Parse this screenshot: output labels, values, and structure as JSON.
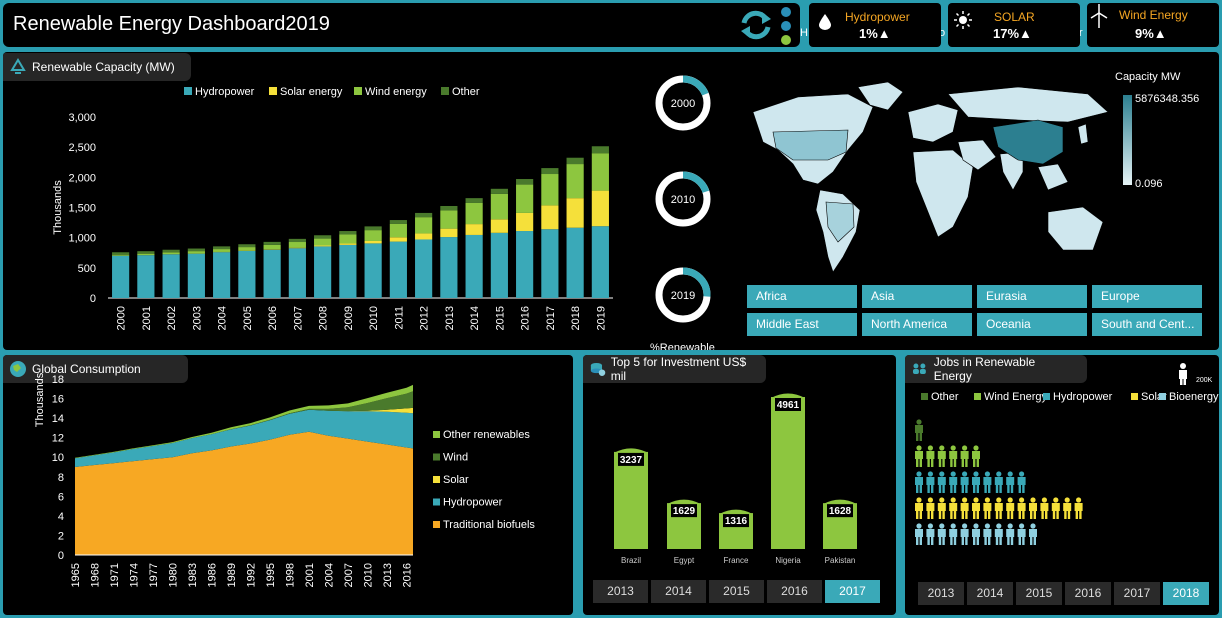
{
  "header": {
    "title": "Renewable Energy Dashboard2019",
    "refresh_icon": "refresh-icon",
    "nav_dots": [
      "#2a8fb8",
      "#2a8fb8",
      "#8dc63f"
    ]
  },
  "kpis": [
    {
      "label": "Hydropower",
      "value": "1%",
      "arrow": "▲",
      "icon": "water-drop-icon"
    },
    {
      "label": "SOLAR",
      "value": "17%",
      "arrow": "▲",
      "icon": "sun-icon"
    },
    {
      "label": "Wind Energy",
      "value": "9%",
      "arrow": "▲",
      "icon": "wind-turbine-icon"
    }
  ],
  "behind_kpi_text": [
    "H",
    "o",
    "r"
  ],
  "colors": {
    "hydro": "#3aa9b8",
    "solar": "#f5e03a",
    "wind": "#8dc63f",
    "other": "#4a7a2c",
    "biofuel": "#f7a823",
    "bio": "#8fd0e0",
    "panel": "#000000",
    "accent": "#2a9db0"
  },
  "capacity": {
    "title": "Renewable Capacity (MW)",
    "ylabel": "Thousands",
    "legend": [
      "Hydropower",
      "Solar energy",
      "Wind energy",
      "Other"
    ],
    "yticks": [
      "3,000",
      "2,500",
      "2,000",
      "1,500",
      "1,000",
      "500",
      "0"
    ]
  },
  "donuts": [
    {
      "label": "2000",
      "pct": 0.19
    },
    {
      "label": "2010",
      "pct": 0.2
    },
    {
      "label": "2019",
      "pct": 0.26
    }
  ],
  "renewable_label": "%Renewable",
  "map": {
    "legend_title": "Capacity MW",
    "max": "5876348.356",
    "min": "0.096"
  },
  "regions": [
    "Africa",
    "Asia",
    "Eurasia",
    "Europe",
    "Middle East",
    "North America",
    "Oceania",
    "South and Cent..."
  ],
  "consumption": {
    "title": "Global Consumption",
    "ylabel": "Thousands",
    "yticks": [
      "18",
      "16",
      "14",
      "12",
      "10",
      "8",
      "6",
      "4",
      "2",
      "0"
    ],
    "legend": [
      "Other renewables",
      "Wind",
      "Solar",
      "Hydropower",
      "Traditional biofuels"
    ]
  },
  "investment": {
    "title": "Top 5 for Investment US$ mil",
    "bars": [
      {
        "country": "Brazil",
        "value": "3237"
      },
      {
        "country": "Egypt",
        "value": "1629"
      },
      {
        "country": "France",
        "value": "1316"
      },
      {
        "country": "Nigeria",
        "value": "4961"
      },
      {
        "country": "Pakistan",
        "value": "1628"
      }
    ],
    "years": [
      "2013",
      "2014",
      "2015",
      "2016",
      "2017"
    ],
    "selected_year": "2017"
  },
  "jobs": {
    "title": "Jobs in Renewable Energy",
    "scale": "200K",
    "legend": [
      "Other",
      "Wind Energy",
      "Hydropower",
      "Solar",
      "Bioenergy"
    ],
    "rows": [
      1,
      6,
      10,
      15,
      11
    ],
    "years": [
      "2013",
      "2014",
      "2015",
      "2016",
      "2017",
      "2018"
    ],
    "selected_year": "2018"
  },
  "chart_data": [
    {
      "type": "bar",
      "stacked": true,
      "title": "Renewable Capacity (MW)",
      "ylabel": "Thousands",
      "ylim": [
        0,
        3000
      ],
      "categories": [
        "2000",
        "2001",
        "2002",
        "2003",
        "2004",
        "2005",
        "2006",
        "2007",
        "2008",
        "2009",
        "2010",
        "2011",
        "2012",
        "2013",
        "2014",
        "2015",
        "2016",
        "2017",
        "2018",
        "2019"
      ],
      "series": [
        {
          "name": "Hydropower",
          "values": [
            700,
            710,
            725,
            735,
            760,
            780,
            800,
            825,
            855,
            880,
            905,
            935,
            970,
            1010,
            1045,
            1080,
            1110,
            1140,
            1165,
            1190
          ]
        },
        {
          "name": "Solar energy",
          "values": [
            1,
            1,
            2,
            2,
            3,
            5,
            6,
            9,
            15,
            23,
            40,
            72,
            100,
            140,
            180,
            225,
            300,
            395,
            490,
            590
          ]
        },
        {
          "name": "Wind energy",
          "values": [
            17,
            24,
            31,
            40,
            48,
            59,
            74,
            94,
            115,
            150,
            180,
            220,
            270,
            300,
            350,
            420,
            470,
            520,
            565,
            620
          ]
        },
        {
          "name": "Other",
          "values": [
            40,
            41,
            42,
            43,
            45,
            47,
            50,
            52,
            55,
            57,
            62,
            65,
            70,
            75,
            80,
            85,
            92,
            98,
            105,
            115
          ]
        }
      ]
    },
    {
      "type": "area",
      "stacked": true,
      "title": "Global Consumption",
      "ylabel": "Thousands",
      "ylim": [
        0,
        18
      ],
      "x": [
        1965,
        1968,
        1971,
        1974,
        1977,
        1980,
        1983,
        1986,
        1989,
        1992,
        1995,
        1998,
        2001,
        2004,
        2007,
        2010,
        2013,
        2016,
        2017
      ],
      "xticks": [
        "1965",
        "1968",
        "1971",
        "1974",
        "1977",
        "1980",
        "1983",
        "1986",
        "1989",
        "1992",
        "1995",
        "1998",
        "2001",
        "2004",
        "2007",
        "2010",
        "2013",
        "2016"
      ],
      "series": [
        {
          "name": "Traditional biofuels",
          "values": [
            9.0,
            9.2,
            9.4,
            9.6,
            9.8,
            10.0,
            10.4,
            10.7,
            11.1,
            11.4,
            11.8,
            12.3,
            12.6,
            12.2,
            11.9,
            11.6,
            11.3,
            11.0,
            10.9
          ]
        },
        {
          "name": "Hydropower",
          "values": [
            0.9,
            1.0,
            1.1,
            1.25,
            1.35,
            1.45,
            1.55,
            1.65,
            1.75,
            1.85,
            2.0,
            2.15,
            2.25,
            2.55,
            2.8,
            3.1,
            3.35,
            3.55,
            3.6
          ]
        },
        {
          "name": "Solar",
          "values": [
            0,
            0,
            0,
            0,
            0,
            0,
            0,
            0,
            0,
            0,
            0,
            0,
            0,
            0,
            0.01,
            0.05,
            0.2,
            0.45,
            0.55
          ]
        },
        {
          "name": "Wind",
          "values": [
            0,
            0,
            0,
            0,
            0,
            0,
            0,
            0,
            0.01,
            0.02,
            0.03,
            0.05,
            0.1,
            0.2,
            0.4,
            0.8,
            1.2,
            1.5,
            1.7
          ]
        },
        {
          "name": "Other renewables",
          "values": [
            0.05,
            0.05,
            0.06,
            0.07,
            0.08,
            0.1,
            0.12,
            0.15,
            0.2,
            0.22,
            0.25,
            0.28,
            0.3,
            0.35,
            0.4,
            0.5,
            0.55,
            0.6,
            0.65
          ]
        }
      ]
    },
    {
      "type": "bar",
      "title": "Top 5 for Investment US$ mil",
      "categories": [
        "Brazil",
        "Egypt",
        "France",
        "Nigeria",
        "Pakistan"
      ],
      "values": [
        3237,
        1629,
        1316,
        4961,
        1628
      ]
    }
  ]
}
